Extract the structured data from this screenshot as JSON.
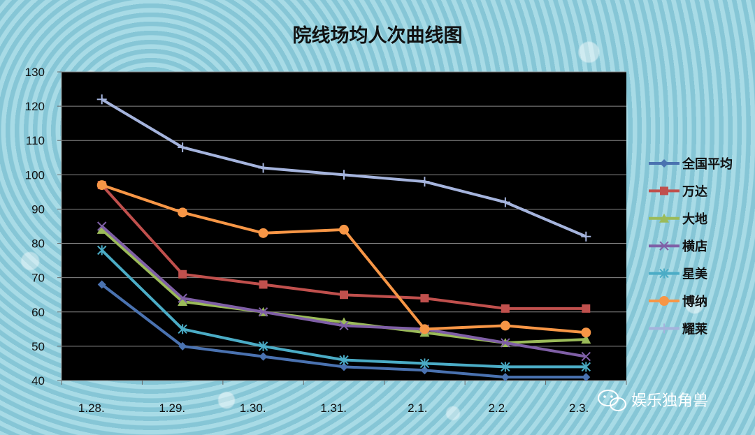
{
  "chart_data": {
    "type": "line",
    "title": "院线场均人次曲线图",
    "categories": [
      "1.28.",
      "1.29.",
      "1.30.",
      "1.31.",
      "2.1.",
      "2.2.",
      "2.3."
    ],
    "ylim": [
      40,
      130
    ],
    "yticks": [
      40,
      50,
      60,
      70,
      80,
      90,
      100,
      110,
      120,
      130
    ],
    "grid": true,
    "legend_position": "right",
    "series": [
      {
        "name": "全国平均",
        "color": "#4a72b0",
        "marker": "diamond",
        "values": [
          68,
          50,
          47,
          44,
          43,
          41,
          41
        ]
      },
      {
        "name": "万达",
        "color": "#c0504d",
        "marker": "square",
        "values": [
          97,
          71,
          68,
          65,
          64,
          61,
          61
        ]
      },
      {
        "name": "大地",
        "color": "#9bbb59",
        "marker": "triangle",
        "values": [
          84,
          63,
          60,
          57,
          54,
          51,
          52
        ]
      },
      {
        "name": "横店",
        "color": "#7f5fa6",
        "marker": "x",
        "values": [
          85,
          64,
          60,
          56,
          55,
          51,
          47
        ]
      },
      {
        "name": "星美",
        "color": "#4bacc6",
        "marker": "star",
        "values": [
          78,
          55,
          50,
          46,
          45,
          44,
          44
        ]
      },
      {
        "name": "博纳",
        "color": "#f79646",
        "marker": "circle",
        "values": [
          97,
          89,
          83,
          84,
          55,
          56,
          54
        ]
      },
      {
        "name": "耀莱",
        "color": "#a5b4dd",
        "marker": "plus",
        "values": [
          122,
          108,
          102,
          100,
          98,
          92,
          82
        ]
      }
    ]
  },
  "watermark": {
    "text": "娱乐独角兽",
    "icon": "wechat-icon"
  }
}
